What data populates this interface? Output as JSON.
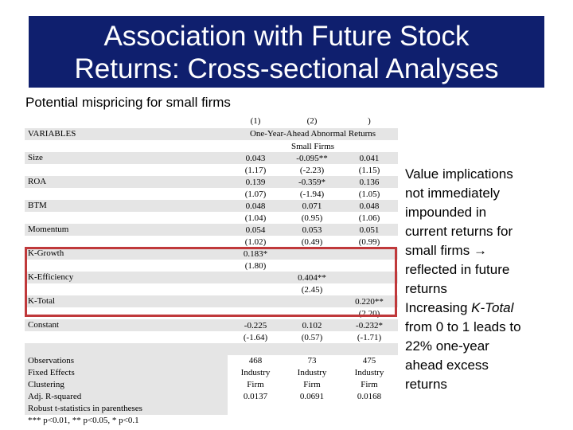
{
  "title": {
    "line1": "Association with Future Stock",
    "line2": "Returns: Cross-sectional Analyses"
  },
  "subtitle": "Potential mispricing for small firms",
  "table": {
    "col_headers": [
      "(1)",
      "(2)",
      ")"
    ],
    "variables_label": "VARIABLES",
    "span_header": "One-Year-Ahead Abnormal Returns",
    "sub_header": "Small Firms",
    "rows": {
      "size": {
        "label": "Size",
        "coef": [
          "0.043",
          "-0.095**",
          "0.041"
        ],
        "t": [
          "(1.17)",
          "(-2.23)",
          "(1.15)"
        ]
      },
      "roa": {
        "label": "ROA",
        "coef": [
          "0.139",
          "-0.359*",
          "0.136"
        ],
        "t": [
          "(1.07)",
          "(-1.94)",
          "(1.05)"
        ]
      },
      "btm": {
        "label": "BTM",
        "coef": [
          "0.048",
          "0.071",
          "0.048"
        ],
        "t": [
          "(1.04)",
          "(0.95)",
          "(1.06)"
        ]
      },
      "momentum": {
        "label": "Momentum",
        "coef": [
          "0.054",
          "0.053",
          "0.051"
        ],
        "t": [
          "(1.02)",
          "(0.49)",
          "(0.99)"
        ]
      },
      "kgrowth": {
        "label": "K-Growth",
        "coef": "0.183*",
        "t": "(1.80)"
      },
      "kefficiency": {
        "label": "K-Efficiency",
        "coef": "0.404**",
        "t": "(2.45)"
      },
      "ktotal": {
        "label": "K-Total",
        "coef": "0.220**",
        "t": "(2.20)"
      },
      "constant": {
        "label": "Constant",
        "coef": [
          "-0.225",
          "0.102",
          "-0.232*"
        ],
        "t": [
          "(-1.64)",
          "(0.57)",
          "(-1.71)"
        ]
      }
    },
    "footer": {
      "observations": {
        "label": "Observations",
        "values": [
          "468",
          "73",
          "475"
        ]
      },
      "fixed_effects": {
        "label": "Fixed Effects",
        "values": [
          "Industry",
          "Industry",
          "Industry"
        ]
      },
      "clustering": {
        "label": "Clustering",
        "values": [
          "Firm",
          "Firm",
          "Firm"
        ]
      },
      "adj_r2": {
        "label": "Adj. R-squared",
        "values": [
          "0.0137",
          "0.0691",
          "0.0168"
        ]
      }
    },
    "notes": {
      "robust": "Robust t-statistics in parentheses",
      "sig": "*** p<0.01, ** p<0.05, * p<0.1"
    }
  },
  "right_text": {
    "line1": "Value implications",
    "line2": "not immediately",
    "line3": "impounded in",
    "line4": "current returns for",
    "line5_pre": "small firms ",
    "arrow": "→",
    "line6": "reflected in future",
    "line7": "returns",
    "line8_pre": "Increasing ",
    "line8_em": "K-Total",
    "line9": "from 0 to 1 leads to",
    "line10": "22% one-year",
    "line11": "ahead excess",
    "line12": "returns"
  },
  "colors": {
    "title_bg": "#0f1f6e",
    "stripe": "#e5e5e5",
    "highlight": "#c0393b"
  }
}
